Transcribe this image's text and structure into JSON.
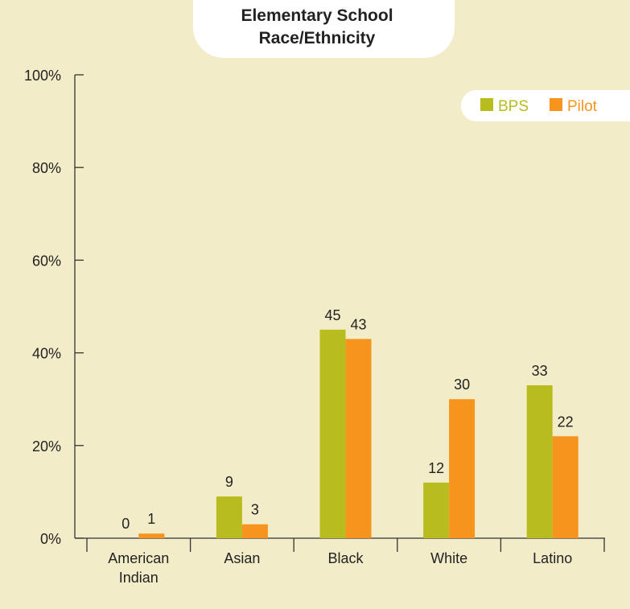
{
  "chart_data": {
    "type": "bar",
    "title": "Elementary School Race/Ethnicity",
    "title_lines": [
      "Elementary School",
      "Race/Ethnicity"
    ],
    "categories": [
      "American Indian",
      "Asian",
      "Black",
      "White",
      "Latino"
    ],
    "category_lines": [
      [
        "American",
        "Indian"
      ],
      [
        "Asian"
      ],
      [
        "Black"
      ],
      [
        "White"
      ],
      [
        "Latino"
      ]
    ],
    "series": [
      {
        "name": "BPS",
        "color": "#b8bc1e",
        "values": [
          0,
          9,
          45,
          12,
          33
        ]
      },
      {
        "name": "Pilot",
        "color": "#f7941d",
        "values": [
          1,
          3,
          43,
          30,
          22
        ]
      }
    ],
    "ylim": [
      0,
      100
    ],
    "yticks": [
      0,
      20,
      40,
      60,
      80,
      100
    ],
    "ytick_labels": [
      "0%",
      "20%",
      "40%",
      "60%",
      "80%",
      "100%"
    ],
    "xlabel": "",
    "ylabel": "",
    "legend_position": "top-right",
    "grid": false,
    "colors": {
      "background": "#f3ecc8",
      "panel": "#ffffff",
      "axis": "#333333",
      "text": "#222222"
    }
  }
}
